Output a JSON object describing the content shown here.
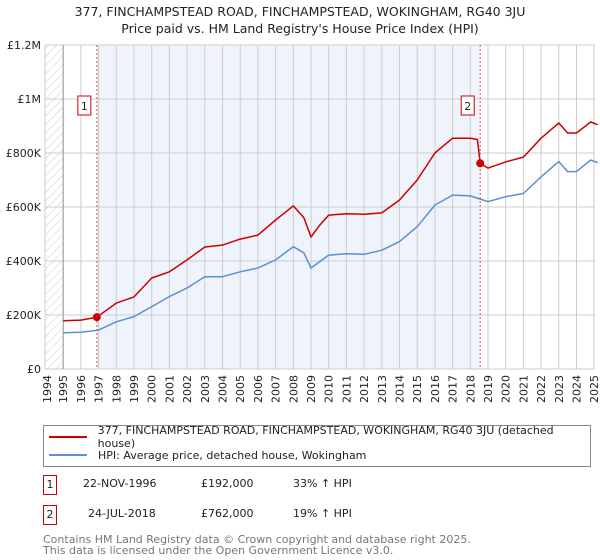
{
  "title": {
    "line1": "377, FINCHAMPSTEAD ROAD, FINCHAMPSTEAD, WOKINGHAM, RG40 3JU",
    "line2": "Price paid vs. HM Land Registry's House Price Index (HPI)"
  },
  "chart_data": {
    "type": "line",
    "xlim": [
      1994,
      2025.3
    ],
    "ylim": [
      0,
      1200000
    ],
    "x_ticks": [
      1994,
      1995,
      1996,
      1997,
      1998,
      1999,
      2000,
      2001,
      2002,
      2003,
      2004,
      2005,
      2006,
      2007,
      2008,
      2009,
      2010,
      2011,
      2012,
      2013,
      2014,
      2015,
      2016,
      2017,
      2018,
      2019,
      2020,
      2021,
      2022,
      2023,
      2024,
      2025
    ],
    "y_ticks": [
      0,
      200000,
      400000,
      600000,
      800000,
      1000000,
      1200000
    ],
    "y_tick_labels": [
      "£0",
      "£200K",
      "£400K",
      "£600K",
      "£800K",
      "£1M",
      "£1.2M"
    ],
    "grid": true,
    "colors": {
      "property": "#cc0000",
      "hpi": "#5b8fd0",
      "shade": "#eef3fc"
    },
    "series": [
      {
        "name": "377, FINCHAMPSTEAD ROAD, FINCHAMPSTEAD, WOKINGHAM, RG40 3JU (detached house)",
        "x": [
          1995,
          1996,
          1996.9,
          1998,
          1999,
          2000,
          2001,
          2002,
          2003,
          2004,
          2005,
          2006,
          2007,
          2008,
          2008.6,
          2009,
          2009.5,
          2010,
          2011,
          2012,
          2013,
          2014,
          2015,
          2016,
          2017,
          2018,
          2018.4,
          2018.56,
          2019,
          2020,
          2021,
          2022,
          2023,
          2023.5,
          2024,
          2024.8,
          2025.2
        ],
        "y": [
          179000,
          181000,
          192000,
          244000,
          267000,
          337000,
          360000,
          404000,
          452000,
          459000,
          481000,
          496000,
          552000,
          604000,
          560000,
          489000,
          533000,
          570000,
          575000,
          573000,
          578000,
          626000,
          700000,
          800000,
          855000,
          855000,
          850000,
          762000,
          744000,
          767000,
          785000,
          855000,
          911000,
          874000,
          874000,
          915000,
          905000
        ]
      },
      {
        "name": "HPI: Average price, detached house, Wokingham",
        "x": [
          1995,
          1996,
          1997,
          1998,
          1999,
          2000,
          2001,
          2002,
          2003,
          2004,
          2005,
          2006,
          2007,
          2008,
          2008.6,
          2009,
          2010,
          2011,
          2012,
          2013,
          2014,
          2015,
          2016,
          2017,
          2018,
          2019,
          2020,
          2021,
          2022,
          2023,
          2023.5,
          2024,
          2024.8,
          2025.2
        ],
        "y": [
          134000,
          136000,
          144000,
          175000,
          194000,
          231000,
          268000,
          300000,
          342000,
          342000,
          360000,
          374000,
          404000,
          453000,
          430000,
          374000,
          422000,
          427000,
          425000,
          440000,
          472000,
          527000,
          607000,
          644000,
          641000,
          620000,
          638000,
          650000,
          712000,
          768000,
          731000,
          731000,
          774000,
          764000
        ]
      }
    ],
    "sales": [
      {
        "label": "1",
        "x": 1996.9,
        "y": 192000
      },
      {
        "label": "2",
        "x": 2018.56,
        "y": 762000
      }
    ]
  },
  "legend": {
    "property": "377, FINCHAMPSTEAD ROAD, FINCHAMPSTEAD, WOKINGHAM, RG40 3JU (detached house)",
    "hpi": "HPI: Average price, detached house, Wokingham"
  },
  "transactions": [
    {
      "num": "1",
      "date": "22-NOV-1996",
      "price": "£192,000",
      "hpi": "33% ↑ HPI"
    },
    {
      "num": "2",
      "date": "24-JUL-2018",
      "price": "£762,000",
      "hpi": "19% ↑ HPI"
    }
  ],
  "footer": {
    "line1": "Contains HM Land Registry data © Crown copyright and database right 2025.",
    "line2": "This data is licensed under the Open Government Licence v3.0."
  }
}
